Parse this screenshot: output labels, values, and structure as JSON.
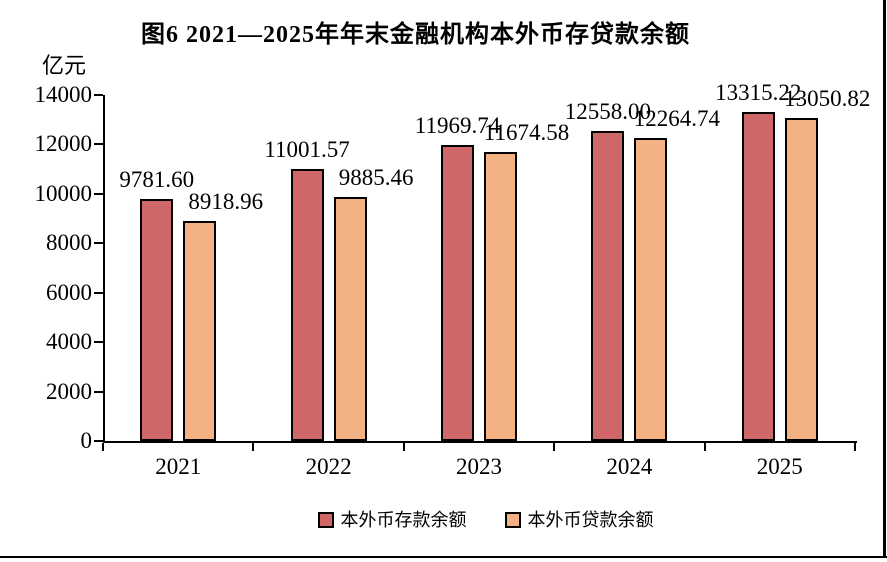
{
  "page": {
    "background": "#ffffff",
    "rule_color": "#000000"
  },
  "chart_data": {
    "type": "bar",
    "title": "图6  2021—2025年年末金融机构本外币存贷款余额",
    "unit_label": "亿元",
    "categories": [
      "2021",
      "2022",
      "2023",
      "2024",
      "2025"
    ],
    "series": [
      {
        "key": "deposit",
        "name": "本外币存款余额",
        "color": "#CF6667",
        "values": [
          9781.6,
          11001.57,
          11969.74,
          12558.0,
          13315.22
        ],
        "labels": [
          "9781.60",
          "11001.57",
          "11969.74",
          "12558.00",
          "13315.22"
        ]
      },
      {
        "key": "loan",
        "name": "本外币贷款余额",
        "color": "#F4B183",
        "values": [
          8918.96,
          9885.46,
          11674.58,
          12264.74,
          13050.82
        ],
        "labels": [
          "8918.96",
          "9885.46",
          "11674.58",
          "12264.74",
          "13050.82"
        ]
      }
    ],
    "ylim": [
      0,
      14000
    ],
    "ytick_step": 2000,
    "yticks": [
      "0",
      "2000",
      "4000",
      "6000",
      "8000",
      "10000",
      "12000",
      "14000"
    ],
    "grid": false,
    "legend_position": "bottom",
    "axis_color": "#000000",
    "bar_border_color": "#000000"
  }
}
